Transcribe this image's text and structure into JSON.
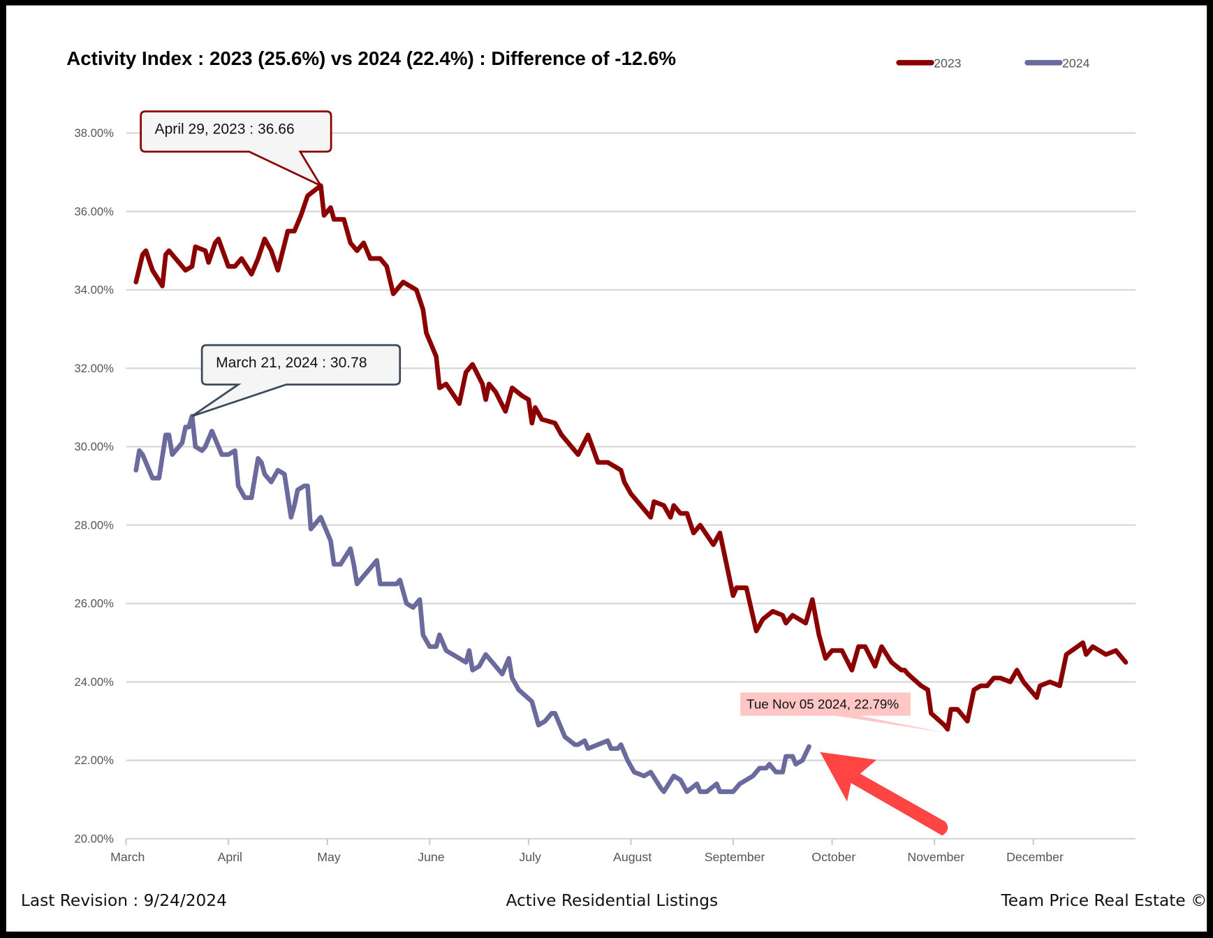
{
  "chart_data": {
    "type": "line",
    "title": "Activity Index : 2023 (25.6%) vs 2024 (22.4%) : Difference of -12.6%",
    "xlabel": "",
    "ylabel": "",
    "x_units": "days since March 1",
    "xlim": [
      0,
      306
    ],
    "ylim": [
      20,
      38
    ],
    "y_ticks": [
      "20.00%",
      "22.00%",
      "24.00%",
      "26.00%",
      "28.00%",
      "30.00%",
      "32.00%",
      "34.00%",
      "36.00%",
      "38.00%"
    ],
    "y_tick_values": [
      20,
      22,
      24,
      26,
      28,
      30,
      32,
      34,
      36,
      38
    ],
    "x_ticks": [
      "March",
      "April",
      "May",
      "June",
      "July",
      "August",
      "September",
      "October",
      "November",
      "December"
    ],
    "x_tick_values": [
      0,
      31,
      61,
      92,
      122,
      153,
      184,
      214,
      245,
      275
    ],
    "grid": true,
    "legend_position": "top-right",
    "series": [
      {
        "name": "2023",
        "color": "#8b0000",
        "x": [
          3,
          5,
          6,
          8,
          11,
          12,
          13,
          18,
          20,
          21,
          24,
          25,
          27,
          28,
          31,
          33,
          35,
          38,
          40,
          42,
          44,
          46,
          49,
          51,
          53,
          55,
          59,
          60,
          62,
          63,
          66,
          68,
          70,
          72,
          74,
          77,
          79,
          81,
          84,
          88,
          90,
          91,
          94,
          95,
          97,
          101,
          103,
          105,
          108,
          109,
          110,
          112,
          115,
          117,
          120,
          122,
          123,
          124,
          126,
          130,
          132,
          137,
          140,
          143,
          146,
          150,
          151,
          153,
          159,
          160,
          163,
          165,
          166,
          168,
          170,
          172,
          174,
          178,
          180,
          183,
          184,
          185,
          188,
          191,
          193,
          196,
          199,
          200,
          202,
          206,
          208,
          210,
          212,
          214,
          217,
          220,
          222,
          224,
          227,
          229,
          232,
          235,
          236,
          237,
          241,
          243,
          244,
          248,
          249,
          250,
          252,
          255,
          257,
          259,
          261,
          263,
          265,
          268,
          270,
          272,
          276,
          277,
          280,
          283,
          285,
          290,
          291,
          293,
          297,
          300,
          303
        ],
        "y": [
          34.2,
          34.9,
          35.0,
          34.5,
          34.1,
          34.9,
          35.0,
          34.5,
          34.6,
          35.1,
          35.0,
          34.7,
          35.2,
          35.3,
          34.6,
          34.6,
          34.8,
          34.4,
          34.8,
          35.3,
          35.0,
          34.5,
          35.5,
          35.5,
          35.9,
          36.4,
          36.66,
          35.9,
          36.1,
          35.8,
          35.8,
          35.2,
          35.0,
          35.2,
          34.8,
          34.8,
          34.6,
          33.9,
          34.2,
          34.0,
          33.5,
          32.9,
          32.3,
          31.5,
          31.6,
          31.1,
          31.9,
          32.1,
          31.6,
          31.2,
          31.6,
          31.4,
          30.9,
          31.5,
          31.3,
          31.2,
          30.6,
          31.0,
          30.7,
          30.6,
          30.3,
          29.8,
          30.3,
          29.6,
          29.6,
          29.4,
          29.1,
          28.8,
          28.2,
          28.6,
          28.5,
          28.2,
          28.5,
          28.3,
          28.3,
          27.8,
          28.0,
          27.5,
          27.8,
          26.6,
          26.2,
          26.4,
          26.4,
          25.3,
          25.6,
          25.8,
          25.7,
          25.5,
          25.7,
          25.5,
          26.1,
          25.2,
          24.6,
          24.8,
          24.8,
          24.3,
          24.9,
          24.9,
          24.4,
          24.9,
          24.5,
          24.3,
          24.3,
          24.2,
          23.9,
          23.8,
          23.2,
          22.9,
          22.79,
          23.3,
          23.3,
          23.0,
          23.8,
          23.9,
          23.9,
          24.1,
          24.1,
          24.0,
          24.3,
          24.0,
          23.6,
          23.9,
          24.0,
          23.9,
          24.7,
          25.0,
          24.7,
          24.9,
          24.7,
          24.8,
          24.5
        ]
      },
      {
        "name": "2024",
        "color": "#6a6a9c",
        "x": [
          3,
          4,
          5,
          6,
          8,
          10,
          12,
          13,
          14,
          17,
          18,
          19,
          20,
          21,
          23,
          24,
          26,
          29,
          31,
          33,
          34,
          36,
          38,
          40,
          41,
          42,
          44,
          46,
          48,
          50,
          51,
          52,
          54,
          55,
          56,
          57,
          59,
          62,
          63,
          65,
          68,
          69,
          70,
          71,
          73,
          76,
          77,
          79,
          82,
          83,
          85,
          87,
          89,
          90,
          92,
          94,
          95,
          97,
          101,
          103,
          104,
          105,
          107,
          109,
          111,
          114,
          116,
          117,
          119,
          123,
          125,
          127,
          129,
          130,
          133,
          136,
          137,
          139,
          140,
          143,
          146,
          147,
          149,
          150,
          152,
          154,
          157,
          159,
          162,
          163,
          166,
          168,
          170,
          173,
          174,
          176,
          179,
          180,
          184,
          186,
          188,
          190,
          192,
          194,
          195,
          197,
          199,
          200,
          202,
          203,
          205,
          207
        ],
        "y": [
          29.4,
          29.9,
          29.8,
          29.6,
          29.2,
          29.2,
          30.3,
          30.3,
          29.8,
          30.1,
          30.5,
          30.5,
          30.78,
          30.0,
          29.9,
          30.0,
          30.4,
          29.8,
          29.8,
          29.9,
          29.0,
          28.7,
          28.7,
          29.7,
          29.6,
          29.3,
          29.1,
          29.4,
          29.3,
          28.2,
          28.5,
          28.9,
          29.0,
          29.0,
          27.9,
          28.0,
          28.2,
          27.6,
          27.0,
          27.0,
          27.4,
          27.0,
          26.5,
          26.6,
          26.8,
          27.1,
          26.5,
          26.5,
          26.5,
          26.6,
          26.0,
          25.9,
          26.1,
          25.2,
          24.9,
          24.9,
          25.2,
          24.8,
          24.6,
          24.5,
          24.8,
          24.3,
          24.4,
          24.7,
          24.5,
          24.2,
          24.6,
          24.1,
          23.8,
          23.5,
          22.9,
          23.0,
          23.2,
          23.2,
          22.6,
          22.4,
          22.4,
          22.5,
          22.3,
          22.4,
          22.5,
          22.3,
          22.3,
          22.4,
          22.0,
          21.7,
          21.6,
          21.7,
          21.3,
          21.2,
          21.6,
          21.5,
          21.2,
          21.4,
          21.2,
          21.2,
          21.4,
          21.2,
          21.2,
          21.4,
          21.5,
          21.6,
          21.8,
          21.8,
          21.9,
          21.7,
          21.7,
          22.1,
          22.1,
          21.9,
          22.0,
          22.35
        ]
      }
    ],
    "annotations": [
      {
        "text": "April 29, 2023 : 36.66",
        "series": "2023",
        "x": 59,
        "y": 36.66,
        "color": "#8b0000"
      },
      {
        "text": "March 21, 2024 : 30.78",
        "series": "2024",
        "x": 20,
        "y": 30.78,
        "color": "#3d4a5c"
      },
      {
        "text": "Tue Nov 05 2024, 22.79%",
        "series": "2023",
        "x": 249,
        "y": 22.79,
        "color": "#ffc0c0"
      }
    ],
    "arrow_color": "#ff4444"
  },
  "footer": {
    "left": "Last Revision : 9/24/2024",
    "center": "Active Residential Listings",
    "right": "Team Price Real Estate ©"
  }
}
